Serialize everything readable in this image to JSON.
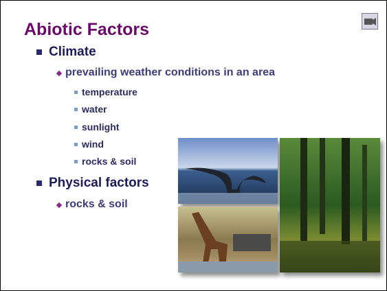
{
  "slide": {
    "title": "Abiotic Factors",
    "items": [
      {
        "text": "Climate",
        "children": [
          {
            "text": "prevailing weather conditions in an area",
            "children": [
              {
                "text": "temperature"
              },
              {
                "text": "water"
              },
              {
                "text": "sunlight"
              },
              {
                "text": "wind"
              },
              {
                "text": "rocks & soil"
              }
            ]
          }
        ]
      },
      {
        "text": "Physical factors",
        "children": [
          {
            "text": "rocks & soil"
          }
        ]
      }
    ]
  }
}
